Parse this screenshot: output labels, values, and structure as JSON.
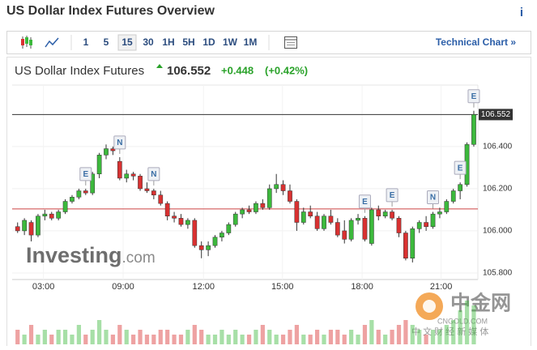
{
  "header": {
    "title": "US Dollar Index Futures Overview",
    "info": "i"
  },
  "toolbar": {
    "intervals": [
      "1",
      "5",
      "15",
      "30",
      "1H",
      "5H",
      "1D",
      "1W",
      "1M"
    ],
    "selected_index": 2,
    "link": "Technical Chart »"
  },
  "chart_data": {
    "type": "candlestick",
    "name": "US Dollar Index Futures",
    "last_price": 106.552,
    "change": "+0.448",
    "change_pct": "(+0.42%)",
    "prev_close": 106.104,
    "colors": {
      "up": "#3cb93c",
      "down": "#d93131",
      "change": "#2aa22a"
    },
    "ohlc": [
      [
        106.02,
        106.04,
        105.99,
        106.0
      ],
      [
        106.0,
        106.06,
        105.98,
        106.05
      ],
      [
        106.04,
        106.05,
        105.95,
        105.98
      ],
      [
        105.98,
        106.08,
        105.97,
        106.07
      ],
      [
        106.07,
        106.1,
        106.05,
        106.08
      ],
      [
        106.08,
        106.09,
        106.05,
        106.06
      ],
      [
        106.06,
        106.1,
        106.05,
        106.09
      ],
      [
        106.09,
        106.15,
        106.08,
        106.14
      ],
      [
        106.14,
        106.17,
        106.13,
        106.16
      ],
      [
        106.16,
        106.2,
        106.15,
        106.19
      ],
      [
        106.19,
        106.2,
        106.17,
        106.18
      ],
      [
        106.18,
        106.28,
        106.17,
        106.27
      ],
      [
        106.27,
        106.37,
        106.25,
        106.36
      ],
      [
        106.36,
        106.41,
        106.34,
        106.39
      ],
      [
        106.39,
        106.4,
        106.36,
        106.38
      ],
      [
        106.33,
        106.35,
        106.24,
        106.25
      ],
      [
        106.25,
        106.29,
        106.23,
        106.27
      ],
      [
        106.27,
        106.28,
        106.24,
        106.26
      ],
      [
        106.26,
        106.27,
        106.19,
        106.2
      ],
      [
        106.2,
        106.23,
        106.18,
        106.19
      ],
      [
        106.19,
        106.2,
        106.15,
        106.17
      ],
      [
        106.17,
        106.19,
        106.12,
        106.13
      ],
      [
        106.13,
        106.14,
        106.05,
        106.07
      ],
      [
        106.07,
        106.09,
        106.04,
        106.06
      ],
      [
        106.06,
        106.08,
        106.02,
        106.03
      ],
      [
        106.03,
        106.06,
        106.01,
        106.05
      ],
      [
        106.05,
        106.06,
        105.92,
        105.93
      ],
      [
        105.93,
        105.95,
        105.87,
        105.91
      ],
      [
        105.91,
        105.95,
        105.88,
        105.93
      ],
      [
        105.93,
        105.98,
        105.92,
        105.97
      ],
      [
        105.97,
        106.0,
        105.95,
        105.99
      ],
      [
        105.99,
        106.04,
        105.98,
        106.03
      ],
      [
        106.03,
        106.09,
        106.02,
        106.08
      ],
      [
        106.08,
        106.11,
        106.06,
        106.1
      ],
      [
        106.1,
        106.12,
        106.08,
        106.09
      ],
      [
        106.09,
        106.14,
        106.08,
        106.13
      ],
      [
        106.13,
        106.15,
        106.1,
        106.11
      ],
      [
        106.11,
        106.22,
        106.1,
        106.2
      ],
      [
        106.2,
        106.27,
        106.18,
        106.22
      ],
      [
        106.22,
        106.24,
        106.17,
        106.19
      ],
      [
        106.19,
        106.22,
        106.13,
        106.14
      ],
      [
        106.14,
        106.15,
        106.0,
        106.04
      ],
      [
        106.04,
        106.11,
        106.03,
        106.09
      ],
      [
        106.09,
        106.12,
        106.06,
        106.07
      ],
      [
        106.07,
        106.09,
        106.0,
        106.01
      ],
      [
        106.01,
        106.08,
        106.0,
        106.07
      ],
      [
        106.07,
        106.1,
        106.03,
        106.04
      ],
      [
        106.04,
        106.06,
        105.97,
        105.98
      ],
      [
        106.0,
        106.05,
        105.94,
        105.96
      ],
      [
        105.96,
        106.06,
        105.95,
        106.05
      ],
      [
        106.05,
        106.08,
        106.03,
        106.06
      ],
      [
        106.06,
        106.07,
        105.95,
        105.96
      ],
      [
        105.94,
        106.11,
        105.93,
        106.1
      ],
      [
        106.1,
        106.12,
        106.05,
        106.07
      ],
      [
        106.07,
        106.1,
        106.06,
        106.09
      ],
      [
        106.09,
        106.1,
        106.05,
        106.06
      ],
      [
        106.06,
        106.07,
        105.97,
        105.99
      ],
      [
        105.99,
        106.0,
        105.86,
        105.87
      ],
      [
        105.87,
        106.02,
        105.85,
        106.01
      ],
      [
        106.01,
        106.05,
        105.99,
        106.04
      ],
      [
        106.04,
        106.07,
        106.0,
        106.02
      ],
      [
        106.02,
        106.09,
        106.01,
        106.08
      ],
      [
        106.08,
        106.11,
        106.06,
        106.09
      ],
      [
        106.09,
        106.15,
        106.08,
        106.14
      ],
      [
        106.14,
        106.2,
        106.13,
        106.19
      ],
      [
        106.19,
        106.23,
        106.15,
        106.22
      ],
      [
        106.22,
        106.42,
        106.21,
        106.41
      ],
      [
        106.41,
        106.57,
        106.4,
        106.552
      ]
    ],
    "volume": [
      3,
      2,
      4,
      2,
      3,
      2,
      3,
      3,
      2,
      4,
      2,
      3,
      5,
      3,
      2,
      4,
      3,
      2,
      3,
      2,
      2,
      3,
      3,
      2,
      2,
      3,
      4,
      3,
      2,
      2,
      3,
      2,
      3,
      2,
      2,
      3,
      4,
      3,
      2,
      2,
      3,
      4,
      2,
      2,
      3,
      2,
      3,
      3,
      2,
      3,
      2,
      4,
      5,
      3,
      2,
      3,
      4,
      5,
      4,
      3,
      2,
      3,
      3,
      4,
      5,
      7,
      9,
      8
    ],
    "volume_max": 10,
    "events": [
      {
        "index": 10,
        "label": "E"
      },
      {
        "index": 15,
        "label": "N"
      },
      {
        "index": 20,
        "label": "N"
      },
      {
        "index": 51,
        "label": "E"
      },
      {
        "index": 55,
        "label": "E"
      },
      {
        "index": 61,
        "label": "N"
      },
      {
        "index": 65,
        "label": "E"
      },
      {
        "index": 67,
        "label": "E"
      }
    ],
    "xlim": [
      -0.8,
      67.6
    ],
    "ylim": [
      105.769,
      106.692
    ],
    "xticks": [
      {
        "value": 3.8,
        "label": "03:00"
      },
      {
        "value": 15.5,
        "label": "09:00"
      },
      {
        "value": 27.3,
        "label": "12:00"
      },
      {
        "value": 38.9,
        "label": "15:00"
      },
      {
        "value": 50.6,
        "label": "18:00"
      },
      {
        "value": 62.2,
        "label": "21:00"
      }
    ],
    "yticks": [
      {
        "value": 105.8,
        "label": "105.800"
      },
      {
        "value": 106.0,
        "label": "106.000"
      },
      {
        "value": 106.2,
        "label": "106.200"
      },
      {
        "value": 106.4,
        "label": "106.400"
      }
    ],
    "grid": true,
    "logo": "Investing",
    "logo_suffix": ".com",
    "watermark": {
      "brand": "中金网",
      "site": "CNGOLD.COM",
      "slogan": "中 文 财 经 新 媒 体"
    }
  }
}
